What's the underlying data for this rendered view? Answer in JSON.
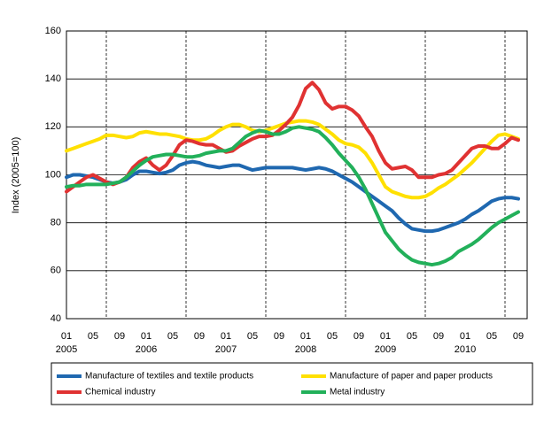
{
  "chart_data": {
    "type": "line",
    "y_label": "Index (2005=100)",
    "categories": [
      "01",
      null,
      null,
      null,
      "05",
      null,
      null,
      null,
      "09",
      null,
      null,
      null,
      "01",
      null,
      null,
      null,
      "05",
      null,
      null,
      null,
      "09",
      null,
      null,
      null,
      "01",
      null,
      null,
      null,
      "05",
      null,
      null,
      null,
      "09",
      null,
      null,
      null,
      "01",
      null,
      null,
      null,
      "05",
      null,
      null,
      null,
      "09",
      null,
      null,
      null,
      "01",
      null,
      null,
      null,
      "05",
      null,
      null,
      null,
      "09",
      null,
      null,
      null,
      "01",
      null,
      null,
      null,
      "05",
      null,
      null,
      null,
      "09"
    ],
    "x_year_labels": [
      "2005",
      "2006",
      "2007",
      "2008",
      "2009",
      "2010"
    ],
    "ylim": [
      40,
      160
    ],
    "yticks": [
      40,
      60,
      80,
      100,
      120,
      140,
      160
    ],
    "grid": true,
    "series": [
      {
        "name": "Manufacture of textiles and textile products",
        "color": "#1f68b0",
        "values": [
          99,
          100,
          100,
          99.5,
          99,
          98,
          97,
          96.5,
          97,
          98,
          100,
          101.5,
          101.5,
          101,
          100.5,
          101,
          102,
          104,
          105,
          105.5,
          105,
          104,
          103.5,
          103,
          103.5,
          104,
          104,
          103,
          102,
          102.5,
          103,
          103,
          103,
          103,
          103,
          102.5,
          102,
          102.5,
          103,
          102.5,
          101.5,
          100,
          98.5,
          97,
          95,
          93,
          91,
          89,
          87,
          85,
          82,
          79.5,
          77.5,
          77,
          76.5,
          76.5,
          77,
          78,
          79,
          80,
          81.5,
          83.5,
          85,
          87,
          89,
          90,
          90.5,
          90.5,
          90
        ]
      },
      {
        "name": "Manufacture of paper and paper products",
        "color": "#ffe000",
        "values": [
          110,
          111,
          112,
          113,
          114,
          115,
          116.5,
          116.5,
          116,
          115.5,
          116,
          117.5,
          118,
          117.5,
          117,
          117,
          116.5,
          116,
          115,
          114.5,
          114.5,
          115,
          116.5,
          118.5,
          120,
          121,
          121,
          120,
          118.5,
          118,
          118.5,
          119.5,
          120.5,
          121.5,
          122,
          122.5,
          122.5,
          122,
          121,
          119,
          117,
          114.5,
          113,
          112.5,
          111.5,
          109,
          105,
          100,
          95,
          93,
          92,
          91,
          90.5,
          90.5,
          91,
          92.5,
          94.5,
          96,
          98,
          100,
          102.5,
          105,
          108,
          111,
          114,
          116.5,
          117,
          116,
          115
        ]
      },
      {
        "name": "Chemical industry",
        "color": "#e03232",
        "values": [
          93,
          95,
          97,
          99,
          100,
          98.5,
          97,
          96,
          97,
          99,
          103,
          105.5,
          107,
          104,
          102,
          104,
          108,
          112.5,
          114.5,
          114,
          113,
          112.5,
          112.5,
          111,
          109.5,
          110,
          112,
          113.5,
          115,
          116,
          116,
          116.5,
          118.5,
          121,
          124,
          129,
          136,
          138.5,
          135.5,
          130,
          127.5,
          128.5,
          128.5,
          127,
          124.5,
          120,
          116,
          110,
          105,
          102.5,
          103,
          103.5,
          102,
          99,
          99,
          99,
          100,
          100.5,
          102,
          105,
          108,
          111,
          112,
          112,
          111,
          111,
          113,
          115.5,
          114.5
        ]
      },
      {
        "name": "Metal industry",
        "color": "#22b05a",
        "values": [
          95,
          95.5,
          95.5,
          96,
          96,
          96,
          96,
          96.5,
          97,
          99,
          101.5,
          104,
          106,
          107.5,
          108,
          108.5,
          108.5,
          108,
          107.5,
          107.5,
          108,
          109,
          109.5,
          110,
          110,
          111,
          113.5,
          116,
          117.5,
          118.5,
          118,
          117,
          117,
          118,
          119.5,
          120,
          119.5,
          119,
          118,
          115.5,
          112.5,
          109,
          106,
          103,
          99,
          94,
          88,
          82,
          76,
          72.5,
          69,
          66.5,
          64.5,
          63.5,
          63,
          62.5,
          63,
          64,
          65.5,
          68,
          69.5,
          71,
          73,
          75.5,
          78,
          80,
          81.5,
          83,
          84.5
        ]
      }
    ]
  }
}
